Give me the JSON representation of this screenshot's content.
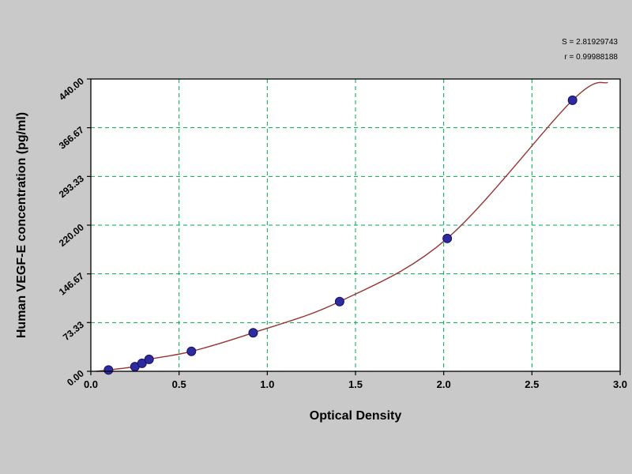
{
  "stats": {
    "s_label": "S = 2.81929743",
    "r_label": "r = 0.99988188"
  },
  "chart_data": {
    "type": "scatter",
    "title": "",
    "xlabel": "Optical Density",
    "ylabel": "Human VEGF-E concentration (pg/ml)",
    "xlim": [
      0.0,
      3.0
    ],
    "ylim": [
      0.0,
      440.0
    ],
    "grid": true,
    "legend_position": "none",
    "x_ticks": [
      0.0,
      0.5,
      1.0,
      1.5,
      2.0,
      2.5,
      3.0
    ],
    "x_tick_labels": [
      "0.0",
      "0.5",
      "1.0",
      "1.5",
      "2.0",
      "2.5",
      "3.0"
    ],
    "y_ticks": [
      0.0,
      73.33,
      146.67,
      220.0,
      293.33,
      366.67,
      440.0
    ],
    "y_tick_labels": [
      "0.00",
      "73.33",
      "146.67",
      "220.00",
      "293.33",
      "366.67",
      "440.00"
    ],
    "series": [
      {
        "name": "standard-points",
        "points": [
          [
            0.1,
            2
          ],
          [
            0.25,
            7
          ],
          [
            0.29,
            12
          ],
          [
            0.33,
            18
          ],
          [
            0.57,
            30
          ],
          [
            0.92,
            58
          ],
          [
            1.41,
            105
          ],
          [
            2.02,
            200
          ],
          [
            2.73,
            408
          ]
        ]
      }
    ],
    "fit_curve": {
      "start": [
        0.03,
        0
      ],
      "end": [
        2.93,
        435
      ]
    },
    "colors": {
      "page_bg": "#c9c9c9",
      "plot_bg": "#ffffff",
      "grid": "#00a651",
      "axis": "#000000",
      "curve": "#993333",
      "point_fill": "#2e2b9e",
      "point_edge": "#151066"
    }
  }
}
